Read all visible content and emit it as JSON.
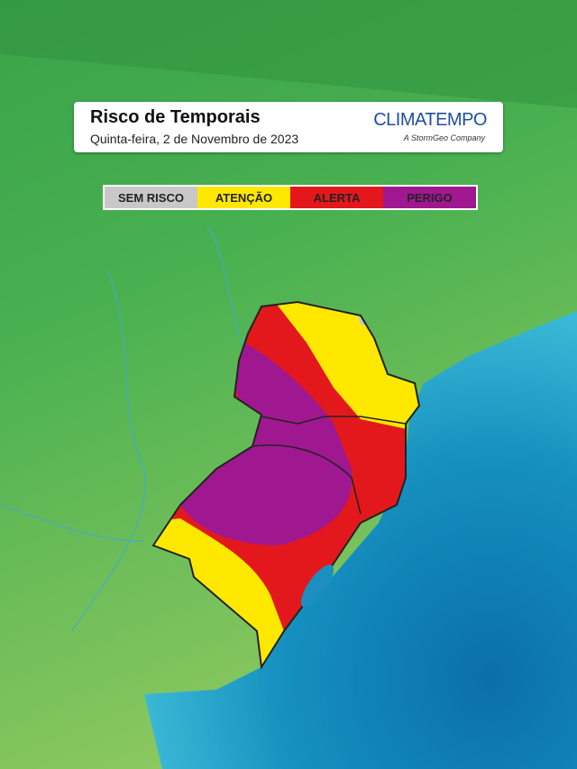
{
  "header": {
    "title": "Risco de Temporais",
    "subtitle": "Quinta-feira, 2 de Novembro de 2023"
  },
  "brand": {
    "name": "CLIMATEMPO",
    "tagline": "A StormGeo Company"
  },
  "legend": {
    "items": [
      {
        "label": "SEM RISCO",
        "color": "#c8c8c8"
      },
      {
        "label": "ATENÇÃO",
        "color": "#ffe800"
      },
      {
        "label": "ALERTA",
        "color": "#e3181c"
      },
      {
        "label": "PERIGO",
        "color": "#a01890"
      }
    ]
  }
}
